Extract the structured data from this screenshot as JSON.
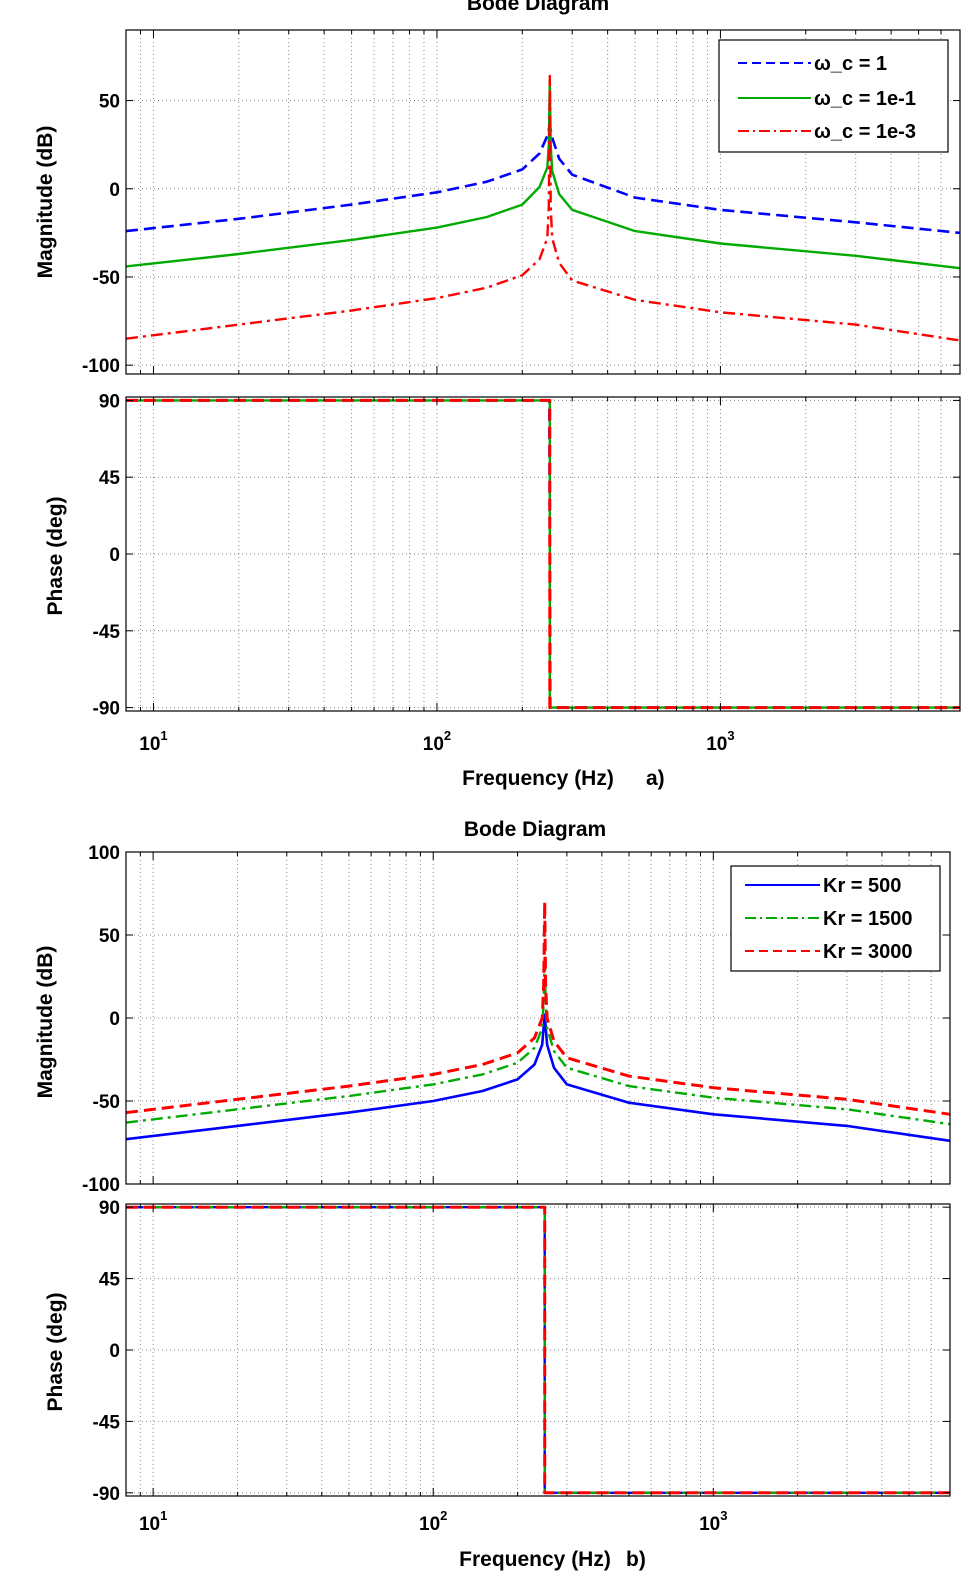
{
  "figure": {
    "caption_a": "a)",
    "caption_b": "b)"
  },
  "chart_data": [
    {
      "id": "a",
      "type": "line",
      "title": "Bode Diagram",
      "xlabel": "Frequency  (Hz)",
      "xscale": "log",
      "xlim": [
        8,
        7000
      ],
      "xticks": [
        {
          "base": "10",
          "exp": "1",
          "value": 10
        },
        {
          "base": "10",
          "exp": "2",
          "value": 100
        },
        {
          "base": "10",
          "exp": "3",
          "value": 1000
        }
      ],
      "grid": true,
      "resonance_hz": 250,
      "legend_position": "top-right",
      "magnitude": {
        "ylabel": "Magnitude (dB)",
        "ylim": [
          -105,
          90
        ],
        "yticks": [
          50,
          0,
          -50,
          -100
        ],
        "series": [
          {
            "name": "ω_c = 1",
            "color": "#0000ff",
            "style": "dash",
            "width": 2.6,
            "x": [
              8,
              20,
              50,
              100,
              150,
              200,
              230,
              245,
              250,
              255,
              270,
              300,
              500,
              1000,
              3000,
              7000
            ],
            "y": [
              -24,
              -17,
              -9,
              -2,
              4,
              11,
              20,
              30,
              36,
              29,
              17,
              8,
              -5,
              -12,
              -19,
              -25
            ]
          },
          {
            "name": "ω_c = 1e-1",
            "color": "#00aa00",
            "style": "solid",
            "width": 2.4,
            "x": [
              8,
              20,
              50,
              100,
              150,
              200,
              230,
              245,
              248,
              250,
              252,
              255,
              270,
              300,
              500,
              1000,
              3000,
              7000
            ],
            "y": [
              -44,
              -37,
              -29,
              -22,
              -16,
              -9,
              1,
              12,
              25,
              62,
              25,
              10,
              -3,
              -12,
              -24,
              -31,
              -38,
              -45
            ]
          },
          {
            "name": "ω_c = 1e-3",
            "color": "#ff0000",
            "style": "dashdot",
            "width": 2.4,
            "x": [
              8,
              20,
              50,
              100,
              150,
              200,
              230,
              245,
              248,
              250,
              252,
              255,
              270,
              300,
              500,
              1000,
              3000,
              7000
            ],
            "y": [
              -85,
              -77,
              -69,
              -62,
              -56,
              -49,
              -40,
              -28,
              -10,
              64,
              -10,
              -28,
              -42,
              -52,
              -63,
              -70,
              -77,
              -86
            ]
          }
        ]
      },
      "phase": {
        "ylabel": "Phase (deg)",
        "ylim": [
          -92,
          92
        ],
        "yticks": [
          90,
          45,
          0,
          -45,
          -90
        ],
        "series": [
          {
            "name": "ω_c = 1",
            "color": "#0000ff",
            "style": "dash",
            "width": 2.6,
            "x": [
              8,
              249,
              251,
              7000
            ],
            "y": [
              90,
              90,
              -90,
              -90
            ]
          },
          {
            "name": "ω_c = 1e-1",
            "color": "#00aa00",
            "style": "solid",
            "width": 2.4,
            "x": [
              8,
              250,
              250,
              7000
            ],
            "y": [
              90,
              90,
              -90,
              -90
            ]
          },
          {
            "name": "ω_c = 1e-3",
            "color": "#ff0000",
            "style": "dash",
            "width": 3,
            "x": [
              8,
              250,
              250,
              7000
            ],
            "y": [
              90,
              90,
              -90,
              -90
            ]
          }
        ]
      }
    },
    {
      "id": "b",
      "type": "line",
      "title": "Bode Diagram",
      "xlabel": "Frequency  (Hz)",
      "xscale": "log",
      "xlim": [
        8,
        7000
      ],
      "xticks": [
        {
          "base": "10",
          "exp": "1",
          "value": 10
        },
        {
          "base": "10",
          "exp": "2",
          "value": 100
        },
        {
          "base": "10",
          "exp": "3",
          "value": 1000
        }
      ],
      "grid": true,
      "resonance_hz": 250,
      "legend_position": "top-right",
      "magnitude": {
        "ylabel": "Magnitude (dB)",
        "ylim": [
          -100,
          100
        ],
        "yticks": [
          100,
          50,
          0,
          -50,
          -100
        ],
        "series": [
          {
            "name": "Kr = 500",
            "color": "#0000ff",
            "style": "solid",
            "width": 2.6,
            "x": [
              8,
              20,
              50,
              100,
              150,
              200,
              230,
              245,
              248,
              250,
              252,
              255,
              270,
              300,
              500,
              1000,
              3000,
              7000
            ],
            "y": [
              -73,
              -65,
              -57,
              -50,
              -44,
              -37,
              -28,
              -16,
              -5,
              2,
              -5,
              -16,
              -30,
              -40,
              -51,
              -58,
              -65,
              -74
            ]
          },
          {
            "name": "Kr = 1500",
            "color": "#00aa00",
            "style": "dashdot",
            "width": 2.4,
            "x": [
              8,
              20,
              50,
              100,
              150,
              200,
              230,
              245,
              248,
              250,
              252,
              255,
              270,
              300,
              500,
              1000,
              3000,
              7000
            ],
            "y": [
              -63,
              -55,
              -47,
              -40,
              -34,
              -27,
              -18,
              -6,
              10,
              40,
              10,
              -6,
              -20,
              -30,
              -41,
              -48,
              -55,
              -64
            ]
          },
          {
            "name": "Kr = 3000",
            "color": "#ff0000",
            "style": "dash",
            "width": 3,
            "x": [
              8,
              20,
              50,
              100,
              150,
              200,
              230,
              245,
              248,
              250,
              252,
              255,
              270,
              300,
              500,
              1000,
              3000,
              7000
            ],
            "y": [
              -57,
              -49,
              -41,
              -34,
              -28,
              -21,
              -12,
              0,
              20,
              70,
              20,
              0,
              -14,
              -24,
              -35,
              -42,
              -49,
              -58
            ]
          }
        ]
      },
      "phase": {
        "ylabel": "Phase (deg)",
        "ylim": [
          -92,
          92
        ],
        "yticks": [
          90,
          45,
          0,
          -45,
          -90
        ],
        "series": [
          {
            "name": "Kr = 500",
            "color": "#0000ff",
            "style": "solid",
            "width": 2.4,
            "x": [
              8,
              250,
              250,
              7000
            ],
            "y": [
              90,
              90,
              -90,
              -90
            ]
          },
          {
            "name": "Kr = 1500",
            "color": "#00aa00",
            "style": "dashdot",
            "width": 2.4,
            "x": [
              8,
              250,
              250,
              7000
            ],
            "y": [
              90,
              90,
              -90,
              -90
            ]
          },
          {
            "name": "Kr = 3000",
            "color": "#ff0000",
            "style": "dash",
            "width": 3,
            "x": [
              8,
              250,
              250,
              7000
            ],
            "y": [
              90,
              90,
              -90,
              -90
            ]
          }
        ]
      }
    }
  ]
}
